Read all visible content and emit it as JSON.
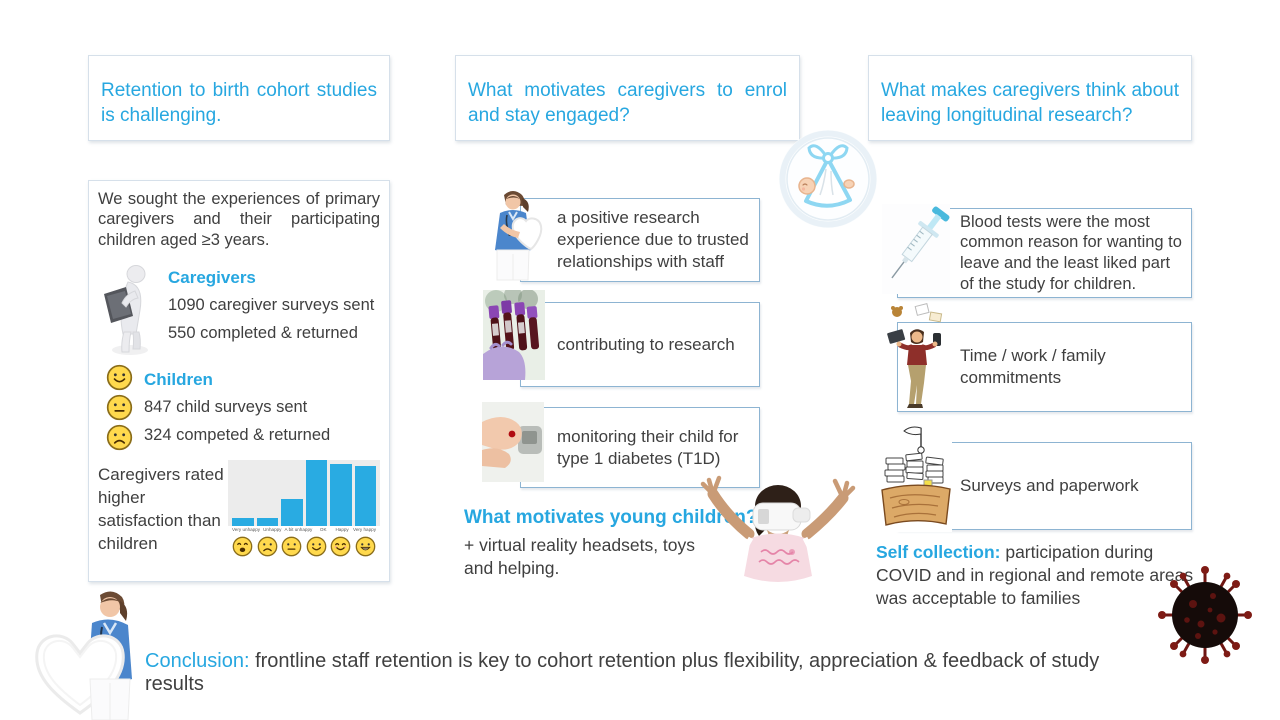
{
  "colors": {
    "accent": "#27a7e0",
    "body_text": "#3f3f3f",
    "bar_color": "#29abe2",
    "plot_bg": "#ececec"
  },
  "col1": {
    "header": "Retention to birth cohort studies is challenging.",
    "intro": "We sought the experiences of primary caregivers and their participating children aged ≥3 years.",
    "caregivers": {
      "icon": "caregiver-reading-tablet-figure",
      "title": "Caregivers",
      "line1": "1090 caregiver surveys sent",
      "line2": "550 completed & returned"
    },
    "children": {
      "face_icons": [
        "smile-face-icon",
        "neutral-face-icon",
        "frown-face-icon"
      ],
      "title": "Children",
      "line1": "847 child surveys sent",
      "line2": "324 competed & returned"
    },
    "satisfaction_note": "Caregivers rated higher satisfaction than children"
  },
  "chart_data": {
    "type": "bar",
    "title": "",
    "categories": [
      "Very unhappy",
      "Unhappy",
      "A bit unhappy",
      "OK",
      "Happy",
      "Very happy"
    ],
    "values": [
      12,
      13,
      42,
      100,
      95,
      92
    ],
    "ylim": [
      0,
      100
    ],
    "xlabel": "",
    "ylabel": "",
    "grid": false,
    "legend": "none",
    "bar_color": "#29abe2",
    "plot_bg": "#ececec",
    "face_icons": [
      "weary-face-icon",
      "frown-face-icon",
      "neutral-face-icon",
      "smile-face-icon",
      "happy-face-icon",
      "grin-face-icon"
    ]
  },
  "col2": {
    "header": "What motivates caregivers to enrol and stay engaged?",
    "badge_icon": "baby-in-stork-bundle-icon",
    "items": [
      {
        "icon": "nurse-holding-heart-photo",
        "text": "a positive research experience due to trusted relationships with staff"
      },
      {
        "icon": "blood-sample-tubes-photo",
        "text": "contributing to research"
      },
      {
        "icon": "finger-blood-drop-photo",
        "text": "monitoring their child for type 1 diabetes (T1D)"
      }
    ],
    "children_heading": "What motivates young children?",
    "children_text": "+ virtual reality headsets, toys and helping.",
    "vr_child_icon": "child-wearing-vr-headset-photo"
  },
  "col3": {
    "header": "What makes caregivers think about leaving longitudinal research?",
    "items": [
      {
        "icon": "syringe-photo",
        "text": "Blood tests were the most common reason for wanting to leave and the least liked part of the study for children."
      },
      {
        "icon": "juggling-commitments-photo",
        "text": "Time / work / family commitments"
      },
      {
        "icon": "paperwork-pile-cartoon",
        "text": "Surveys and paperwork"
      }
    ],
    "self_collection": {
      "label": "Self collection:",
      "text": " participation during COVID and in regional and remote areas was acceptable to families"
    },
    "covid_icon": "coronavirus-icon"
  },
  "conclusion": {
    "nurse_icon": "nurse-holding-heart-photo",
    "label": "Conclusion:",
    "text": " frontline staff retention is key to cohort retention plus flexibility, appreciation & feedback of study results"
  }
}
